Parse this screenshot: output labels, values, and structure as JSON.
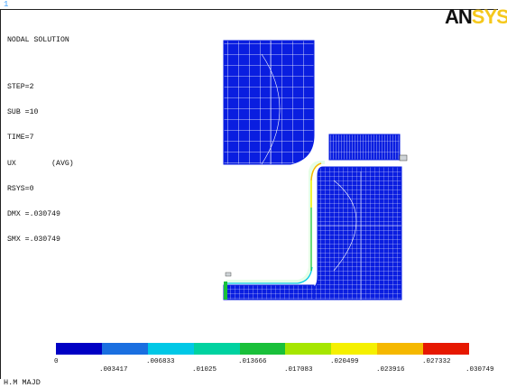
{
  "window_number": "1",
  "title": "NODAL SOLUTION",
  "info_lines": [
    "STEP=2",
    "SUB =10",
    "TIME=7",
    "UX        (AVG)",
    "RSYS=0",
    "DMX =.030749",
    "SMX =.030749"
  ],
  "logo": {
    "part1": "AN",
    "part2": "SYS"
  },
  "author": "H.M MAJD",
  "legend": {
    "colors": [
      "#0000c4",
      "#1a6fe0",
      "#00c8e6",
      "#00d2a0",
      "#19c03a",
      "#a6e600",
      "#f5f000",
      "#f5b800",
      "#e61800"
    ],
    "upper_ticks": [
      "0",
      ".006833",
      ".013666",
      ".020499",
      ".027332"
    ],
    "lower_ticks": [
      ".003417",
      ".01025",
      ".017083",
      ".023916",
      ".030749"
    ]
  },
  "colors": {
    "mesh": "#0a1ee0",
    "mesh_line": "#ffffff"
  }
}
